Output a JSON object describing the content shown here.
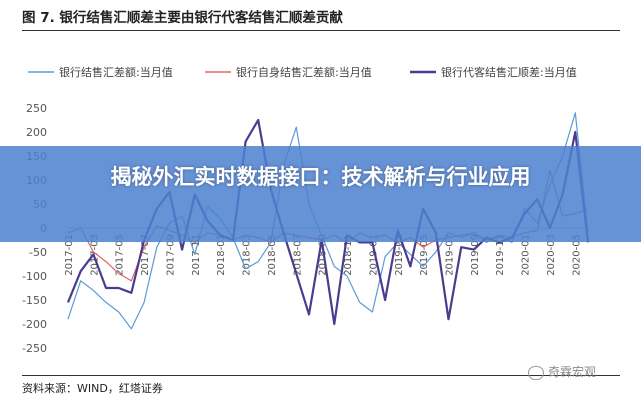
{
  "figure": {
    "title": "图 7. 银行结售汇顺差主要由银行代客结售汇顺差贡献",
    "source": "资料来源：WIND，红塔证券",
    "watermark": "奇霖宏观",
    "overlay_text": "揭秘外汇实时数据接口：技术解析与行业应用"
  },
  "chart_data": {
    "type": "line",
    "title": "",
    "xlabel": "",
    "ylabel": "",
    "ylim": [
      -250,
      250
    ],
    "yticks": [
      -250,
      -200,
      -150,
      -100,
      -50,
      0,
      50,
      100,
      150,
      200,
      250
    ],
    "grid": false,
    "legend_position": "top",
    "x": [
      "2017-01",
      "2017-02",
      "2017-03",
      "2017-04",
      "2017-05",
      "2017-06",
      "2017-07",
      "2017-08",
      "2017-09",
      "2017-10",
      "2017-11",
      "2017-12",
      "2018-01",
      "2018-02",
      "2018-03",
      "2018-04",
      "2018-05",
      "2018-06",
      "2018-07",
      "2018-08",
      "2018-09",
      "2018-10",
      "2018-11",
      "2018-12",
      "2019-01",
      "2019-02",
      "2019-03",
      "2019-04",
      "2019-05",
      "2019-06",
      "2019-07",
      "2019-08",
      "2019-09",
      "2019-10",
      "2019-11",
      "2019-12",
      "2020-01",
      "2020-02",
      "2020-03",
      "2020-04",
      "2020-05",
      "2020-06"
    ],
    "x_tick_labels": [
      "2017-01",
      "2017-03",
      "2017-05",
      "2017-07",
      "2017-09",
      "2017-11",
      "2018-01",
      "2018-03",
      "2018-05",
      "2018-07",
      "2018-09",
      "2018-11",
      "2019-01",
      "2019-03",
      "2019-05",
      "2019-07",
      "2019-09",
      "2019-11",
      "2020-01",
      "2020-03",
      "2020-05"
    ],
    "series": [
      {
        "name": "银行结售汇差额:当月值",
        "color": "#5b9bd5",
        "width": 1.2,
        "values": [
          -190,
          -110,
          -130,
          -155,
          -175,
          -210,
          -155,
          -40,
          10,
          25,
          -55,
          45,
          20,
          -20,
          -85,
          -70,
          -30,
          130,
          210,
          50,
          -15,
          -80,
          -100,
          -155,
          -175,
          -60,
          -30,
          -55,
          -80,
          -50,
          -10,
          -20,
          -10,
          -30,
          -15,
          -30,
          40,
          10,
          90,
          150,
          240,
          -10
        ]
      },
      {
        "name": "银行自身结售汇差额:当月值",
        "color": "#e06666",
        "width": 1.2,
        "values": [
          -10,
          0,
          -50,
          -70,
          -95,
          -110,
          -40,
          5,
          -5,
          -15,
          -30,
          -10,
          -15,
          -25,
          -15,
          -20,
          -30,
          -10,
          -15,
          -20,
          -25,
          -15,
          -30,
          -10,
          -20,
          -15,
          -30,
          -20,
          -40,
          -25,
          -20,
          -15,
          -10,
          -25,
          -15,
          -20,
          -10,
          -5,
          120,
          25,
          30,
          40
        ]
      },
      {
        "name": "银行代客结售汇顺差:当月值",
        "color": "#4b3c8f",
        "width": 2.2,
        "values": [
          -155,
          -90,
          -55,
          -125,
          -125,
          -135,
          -25,
          40,
          75,
          -45,
          70,
          15,
          -15,
          -25,
          180,
          225,
          80,
          -10,
          -95,
          -180,
          -25,
          -200,
          -15,
          -30,
          -30,
          -150,
          -5,
          -80,
          40,
          -10,
          -190,
          -40,
          -45,
          -20,
          -30,
          -20,
          30,
          60,
          0,
          70,
          200,
          -30
        ]
      }
    ]
  }
}
